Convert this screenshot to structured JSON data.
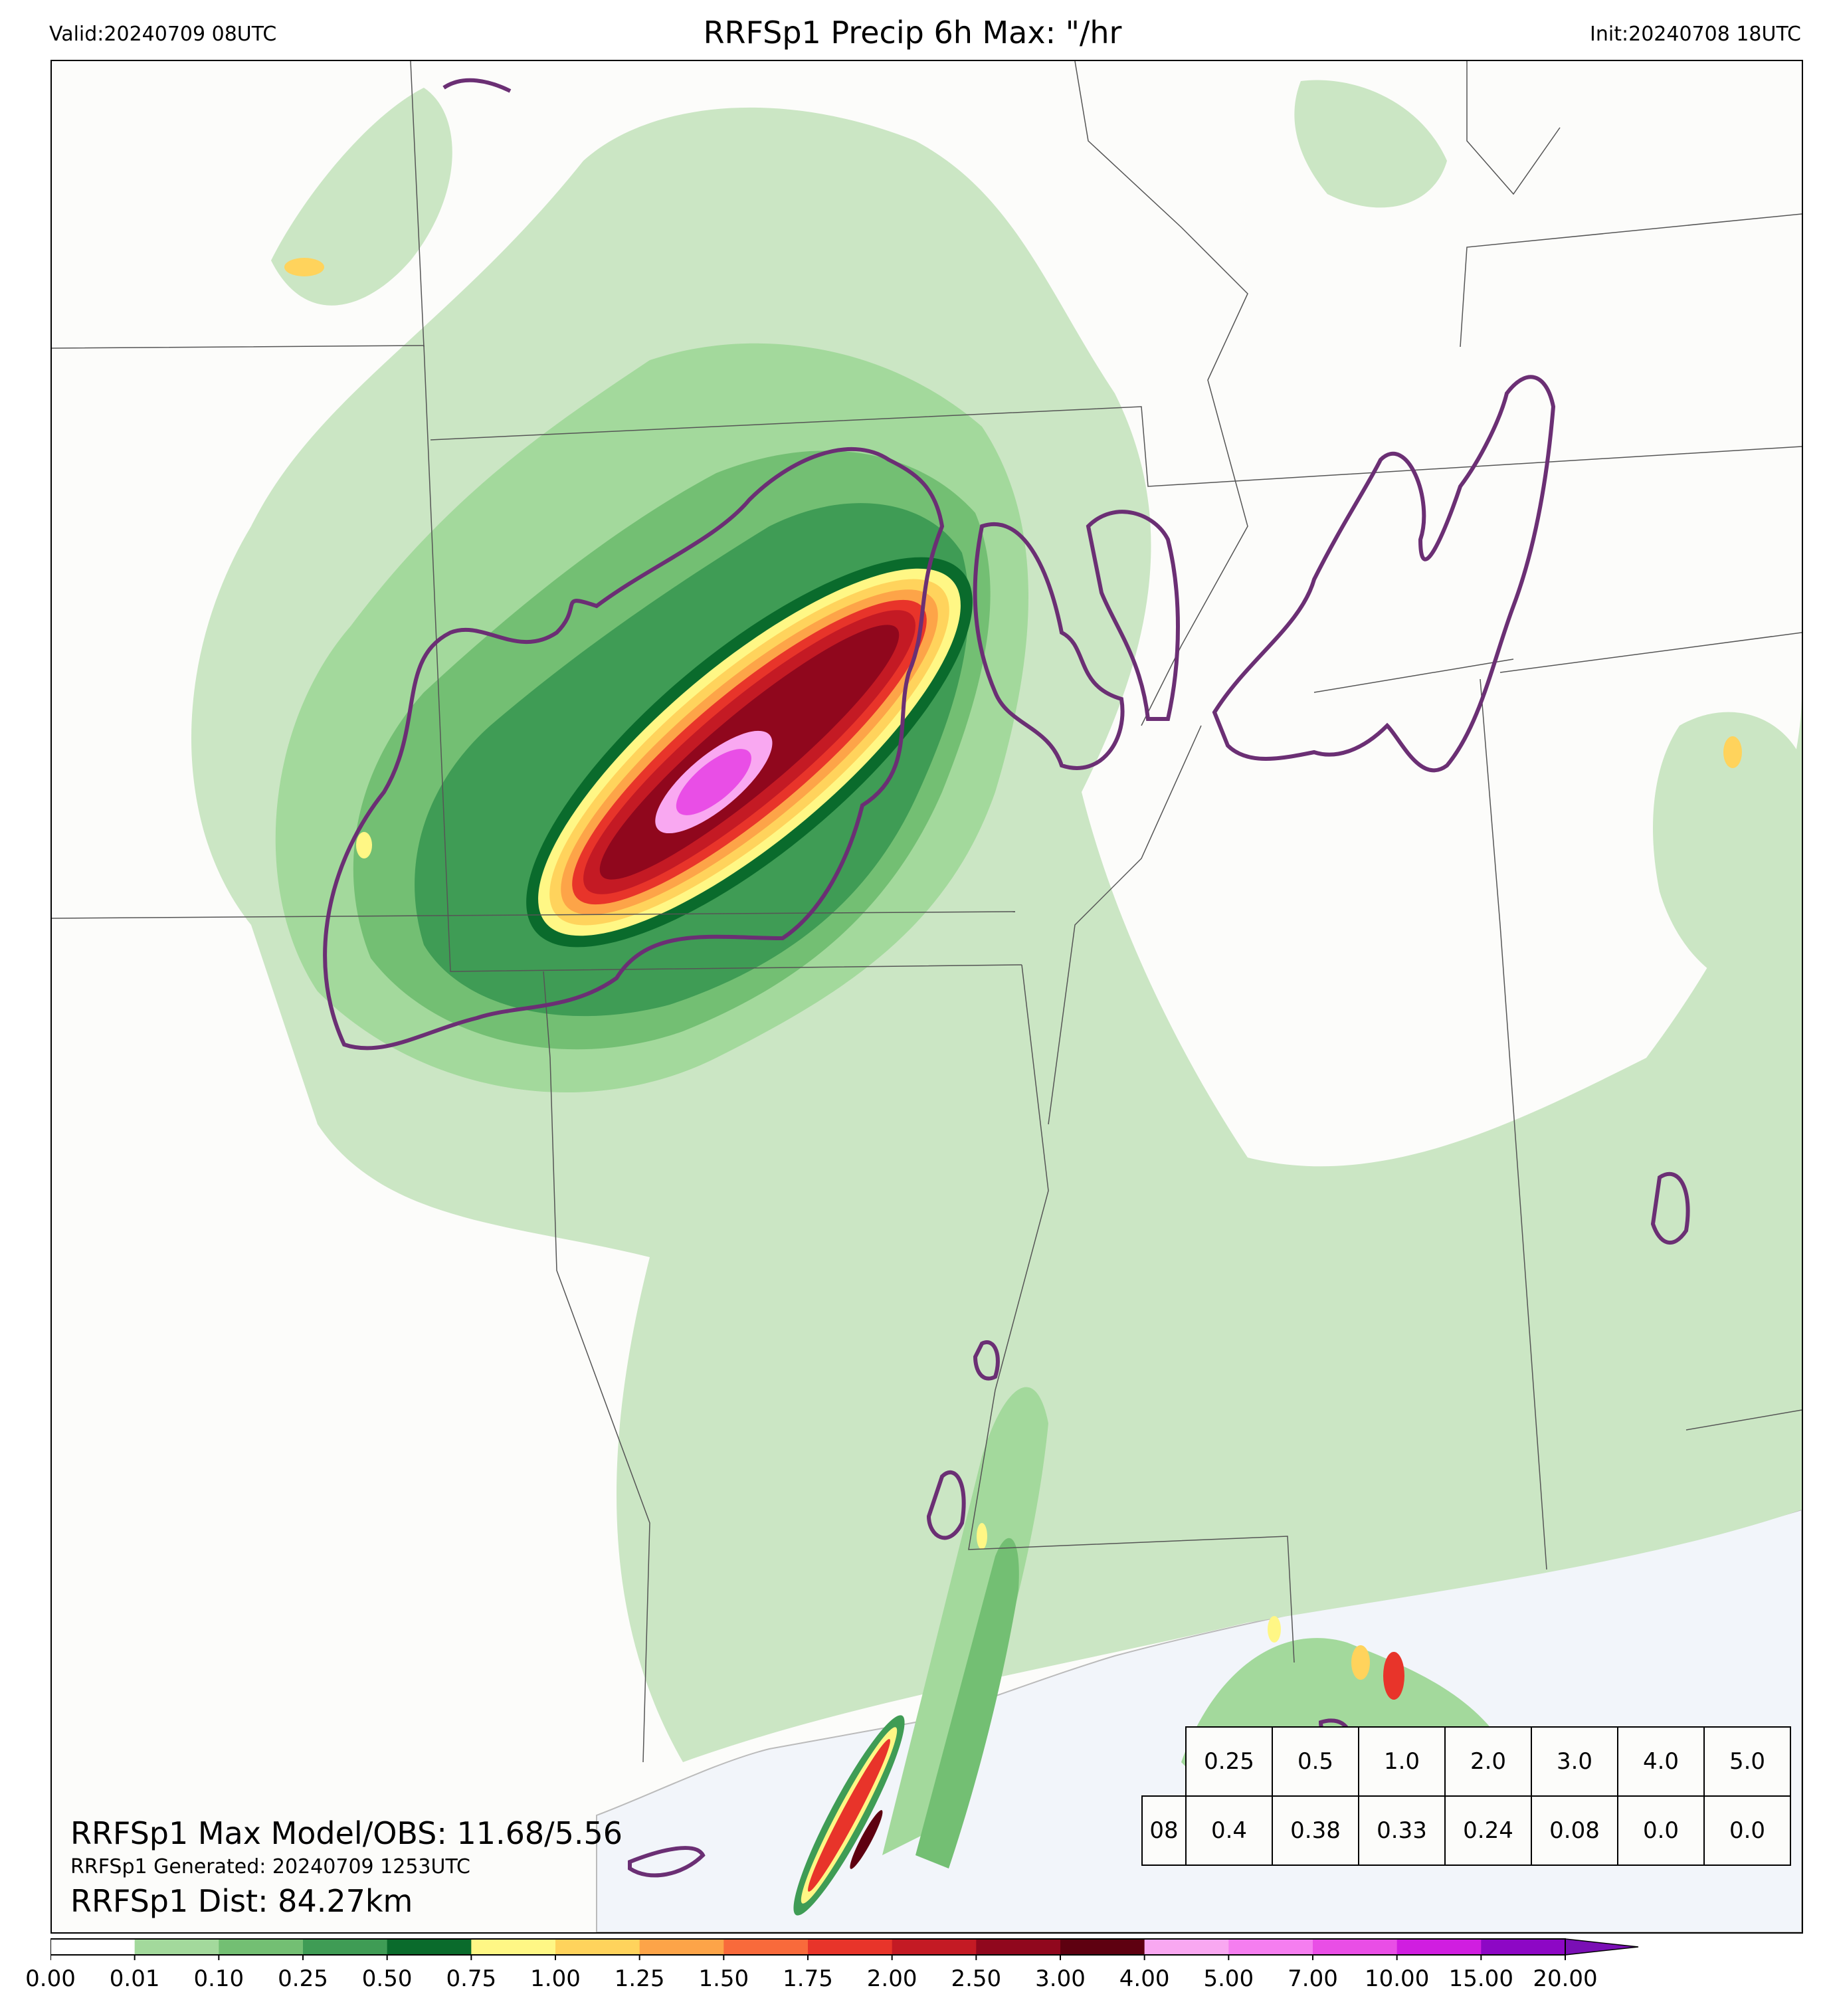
{
  "header": {
    "valid": "Valid:20240709 08UTC",
    "title": "RRFSp1 Precip 6h Max: \"/hr",
    "init": "Init:20240708 18UTC"
  },
  "annotations": {
    "max_line": "RRFSp1 Max Model/OBS: 11.68/5.56",
    "generated": "RRFSp1 Generated: 20240709 1253UTC",
    "dist": "RRFSp1 Dist: 84.27km"
  },
  "stats_table": {
    "thresholds": [
      "0.25",
      "0.5",
      "1.0",
      "2.0",
      "3.0",
      "4.0",
      "5.0"
    ],
    "row_label": "08",
    "values": [
      "0.4",
      "0.38",
      "0.33",
      "0.24",
      "0.08",
      "0.0",
      "0.0"
    ]
  },
  "colorbar": {
    "ticks": [
      "0.00",
      "0.01",
      "0.10",
      "0.25",
      "0.50",
      "0.75",
      "1.00",
      "1.25",
      "1.50",
      "1.75",
      "2.00",
      "2.50",
      "3.00",
      "4.00",
      "5.00",
      "7.00",
      "10.00",
      "15.00",
      "20.00"
    ],
    "colors": [
      "#ffffff",
      "#cbe6c4",
      "#a3d99c",
      "#73bf73",
      "#3f9c55",
      "#0a6b2c",
      "#fff785",
      "#ffd35c",
      "#fda448",
      "#f96a3b",
      "#e8342a",
      "#c41a24",
      "#90071d",
      "#5e0010",
      "#f9a8f1",
      "#f57ef0",
      "#e94ee6",
      "#d01ee0",
      "#8d07c5"
    ],
    "extend_color": "#7a0fb5"
  },
  "map_colors": {
    "background": "#fcfcfa",
    "water": "#f2f5fa",
    "obs_contour": "#6b2f74",
    "borders": "#555555"
  }
}
